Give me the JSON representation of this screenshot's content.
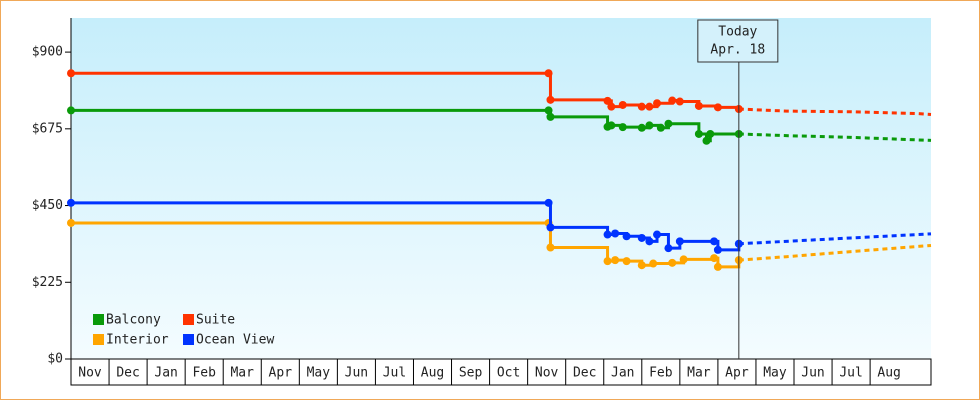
{
  "chart_data": {
    "type": "step-line",
    "categories": [
      "Nov",
      "Dec",
      "Jan",
      "Feb",
      "Mar",
      "Apr",
      "May",
      "Jun",
      "Jul",
      "Aug",
      "Sep",
      "Oct",
      "Nov",
      "Dec",
      "Jan",
      "Feb",
      "Mar",
      "Apr",
      "May",
      "Jun",
      "Jul",
      "Aug"
    ],
    "xlim": [
      0,
      22.6
    ],
    "ylim": [
      0,
      1000
    ],
    "yticks": [
      {
        "value": 0,
        "label": "$0"
      },
      {
        "value": 225,
        "label": "$225"
      },
      {
        "value": 450,
        "label": "$450"
      },
      {
        "value": 675,
        "label": "$675"
      },
      {
        "value": 900,
        "label": "$900"
      }
    ],
    "annotation": {
      "x": 17.55,
      "lines": [
        "Today",
        "Apr. 18"
      ]
    },
    "legend": "lower-left",
    "series": [
      {
        "name": "Balcony",
        "color": "#0a9a0a",
        "x": [
          0,
          12.55,
          12.6,
          14.1,
          14.2,
          14.5,
          15.0,
          15.2,
          15.5,
          15.7,
          16.5,
          16.7,
          16.8,
          17.55
        ],
        "values": [
          729,
          729,
          710,
          681,
          685,
          680,
          678,
          685,
          678,
          690,
          660,
          640,
          660,
          660
        ],
        "forecast": {
          "x": [
            17.55,
            18.8,
            20.5,
            22.6
          ],
          "values": [
            660,
            655,
            650,
            641
          ]
        }
      },
      {
        "name": "Suite",
        "color": "#ff3300",
        "x": [
          0,
          12.55,
          12.6,
          14.1,
          14.2,
          14.5,
          15.0,
          15.2,
          15.4,
          15.8,
          16.0,
          16.5,
          17.0,
          17.55
        ],
        "values": [
          838,
          838,
          760,
          757,
          740,
          745,
          740,
          740,
          750,
          758,
          755,
          742,
          738,
          733
        ],
        "forecast": {
          "x": [
            17.55,
            18.8,
            20.5,
            22.2,
            22.6
          ],
          "values": [
            733,
            727,
            725,
            720,
            717
          ]
        }
      },
      {
        "name": "Interior",
        "color": "#ffa500",
        "x": [
          0,
          12.55,
          12.6,
          14.1,
          14.3,
          14.6,
          15.0,
          15.3,
          15.8,
          16.1,
          16.9,
          17.0,
          17.55
        ],
        "values": [
          399,
          399,
          327,
          287,
          290,
          287,
          275,
          280,
          282,
          292,
          296,
          270,
          290
        ],
        "forecast": {
          "x": [
            17.55,
            18.8,
            20.5,
            22.6
          ],
          "values": [
            290,
            300,
            315,
            333
          ]
        }
      },
      {
        "name": "Ocean View",
        "color": "#0033ff",
        "x": [
          0,
          12.55,
          12.6,
          14.1,
          14.3,
          14.6,
          15.0,
          15.2,
          15.4,
          15.7,
          16.0,
          16.9,
          17.0,
          17.55
        ],
        "values": [
          458,
          458,
          386,
          365,
          368,
          360,
          355,
          345,
          365,
          325,
          345,
          345,
          320,
          338
        ],
        "forecast": {
          "x": [
            17.55,
            18.8,
            20.5,
            22.6
          ],
          "values": [
            338,
            345,
            355,
            367
          ]
        }
      }
    ]
  }
}
